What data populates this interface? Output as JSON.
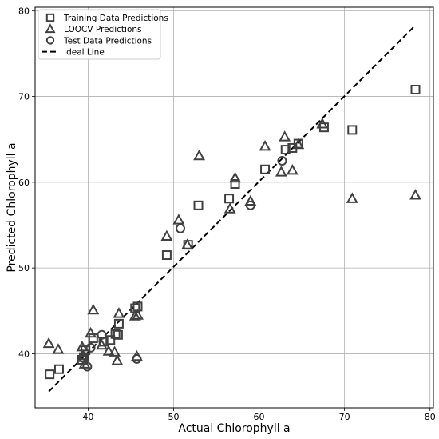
{
  "chart_data": {
    "type": "scatter",
    "title": "",
    "xlabel": "Actual Chlorophyll a",
    "ylabel": "Predicted Chlorophyll a",
    "xlim": [
      33.8,
      80.4
    ],
    "ylim": [
      33.7,
      80.4
    ],
    "x_ticks": [
      40,
      50,
      60,
      70,
      80
    ],
    "y_ticks": [
      40,
      50,
      60,
      70,
      80
    ],
    "grid": true,
    "legend_position": "top-left",
    "marker_color": "#404040",
    "series": [
      {
        "name": "Training Data Predictions",
        "marker": "square",
        "points": [
          [
            35.5,
            37.6
          ],
          [
            36.6,
            38.2
          ],
          [
            39.3,
            39.3
          ],
          [
            39.5,
            39.6
          ],
          [
            39.7,
            40.4
          ],
          [
            40.6,
            41.8
          ],
          [
            41.8,
            41.4
          ],
          [
            42.6,
            41.6
          ],
          [
            43.2,
            42.3
          ],
          [
            43.5,
            42.2
          ],
          [
            43.6,
            43.5
          ],
          [
            45.5,
            45.3
          ],
          [
            45.8,
            45.5
          ],
          [
            49.2,
            51.5
          ],
          [
            51.7,
            52.7
          ],
          [
            52.9,
            57.3
          ],
          [
            56.5,
            58.1
          ],
          [
            57.2,
            59.8
          ],
          [
            60.7,
            61.5
          ],
          [
            63.1,
            63.8
          ],
          [
            63.9,
            64.0
          ],
          [
            64.6,
            64.5
          ],
          [
            67.6,
            66.4
          ],
          [
            70.9,
            66.1
          ],
          [
            78.3,
            70.8
          ]
        ]
      },
      {
        "name": "LOOCV Predictions",
        "marker": "triangle",
        "points": [
          [
            35.4,
            41.2
          ],
          [
            36.5,
            40.5
          ],
          [
            39.3,
            40.8
          ],
          [
            39.4,
            39.8
          ],
          [
            39.6,
            38.8
          ],
          [
            40.3,
            42.4
          ],
          [
            40.6,
            45.1
          ],
          [
            41.6,
            41.0
          ],
          [
            42.4,
            40.3
          ],
          [
            43.1,
            40.2
          ],
          [
            43.4,
            39.2
          ],
          [
            43.6,
            44.7
          ],
          [
            45.5,
            44.4
          ],
          [
            45.7,
            39.7
          ],
          [
            45.8,
            44.5
          ],
          [
            49.2,
            53.7
          ],
          [
            50.6,
            55.6
          ],
          [
            51.6,
            52.7
          ],
          [
            53.0,
            63.1
          ],
          [
            56.6,
            56.9
          ],
          [
            57.2,
            60.5
          ],
          [
            59.0,
            57.8
          ],
          [
            60.7,
            64.2
          ],
          [
            62.6,
            61.2
          ],
          [
            63.0,
            65.3
          ],
          [
            63.9,
            61.4
          ],
          [
            64.6,
            64.4
          ],
          [
            67.4,
            66.8
          ],
          [
            70.9,
            58.1
          ],
          [
            78.3,
            58.5
          ]
        ]
      },
      {
        "name": "Test Data Predictions",
        "marker": "circle",
        "points": [
          [
            39.5,
            39.5
          ],
          [
            39.9,
            38.5
          ],
          [
            40.3,
            40.7
          ],
          [
            41.6,
            42.2
          ],
          [
            45.7,
            39.4
          ],
          [
            50.8,
            54.6
          ],
          [
            59.0,
            57.3
          ],
          [
            62.7,
            62.5
          ]
        ]
      }
    ],
    "ideal_line": {
      "name": "Ideal Line",
      "points": [
        [
          35.4,
          35.6
        ],
        [
          78.3,
          78.3
        ]
      ]
    }
  }
}
